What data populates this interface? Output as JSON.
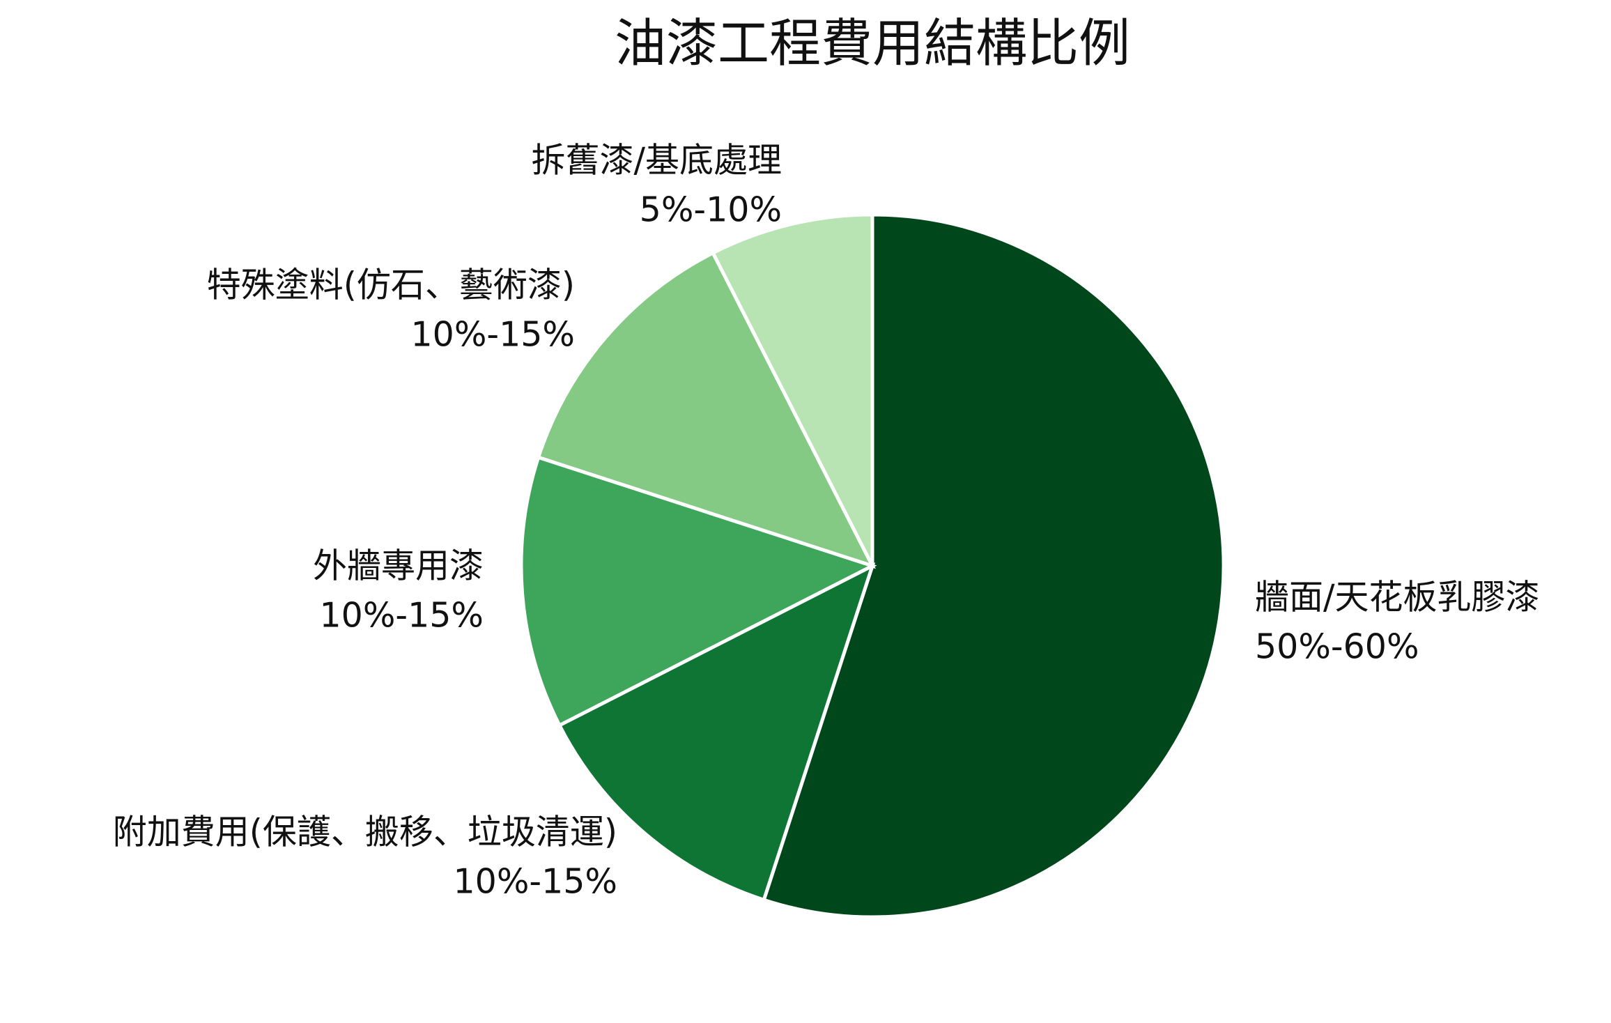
{
  "chart_data": {
    "type": "pie",
    "title": "油漆工程費用結構比例",
    "categories": [
      "牆面/天花板乳膠漆",
      "附加費用(保護、搬移、垃圾清運)",
      "外牆專用漆",
      "特殊塗料(仿石、藝術漆)",
      "拆舊漆/基底處理"
    ],
    "values": [
      55,
      12.5,
      12.5,
      12.5,
      7.5
    ],
    "value_labels": [
      "50%-60%",
      "10%-15%",
      "10%-15%",
      "10%-15%",
      "5%-10%"
    ],
    "colors": [
      "#00471c",
      "#0e7535",
      "#3da65a",
      "#84c984",
      "#b8e3b2"
    ]
  }
}
